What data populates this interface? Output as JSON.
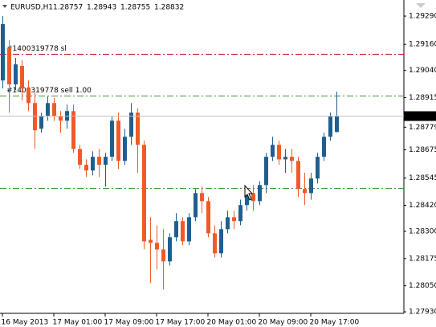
{
  "chart_data": {
    "type": "candlestick",
    "title": "EURUSD,H1",
    "categories": [
      "16 May 2013",
      null,
      null,
      null,
      null,
      null,
      null,
      null,
      "17 May 01:00",
      null,
      null,
      null,
      null,
      null,
      null,
      null,
      "17 May 09:00",
      null,
      null,
      null,
      null,
      null,
      null,
      null,
      "17 May 17:00",
      null,
      null,
      null,
      null,
      null,
      null,
      null,
      "20 May 01:00",
      null,
      null,
      null,
      null,
      null,
      null,
      null,
      "20 May 09:00",
      null,
      null,
      null,
      null,
      null,
      null,
      null,
      "20 May 17:00",
      null,
      null,
      null,
      null
    ],
    "open": [
      1.28994,
      1.29142,
      1.28976,
      1.29061,
      1.28957,
      1.2889,
      1.28772,
      1.28828,
      1.2889,
      1.28828,
      1.28809,
      1.28853,
      1.28679,
      1.28606,
      1.2858,
      1.28643,
      1.28606,
      1.28643,
      1.28809,
      1.28624,
      1.28735,
      1.28846,
      1.28698,
      1.28261,
      1.28247,
      1.28217,
      1.28162,
      1.28273,
      1.28347,
      1.28254,
      1.28365,
      1.28476,
      1.28439,
      1.28291,
      1.28199,
      1.2831,
      1.28365,
      1.28347,
      1.28421,
      1.28476,
      1.28439,
      1.28513,
      1.28643,
      1.28698,
      1.28631,
      1.28643,
      1.28624,
      1.28495,
      1.28476,
      1.28543,
      1.28643,
      1.28735,
      1.28757
    ],
    "high": [
      1.2929,
      1.29179,
      1.29098,
      1.29087,
      1.28994,
      1.28939,
      1.28846,
      1.2892,
      1.28913,
      1.28853,
      1.28883,
      1.28883,
      1.28698,
      1.28631,
      1.28668,
      1.28679,
      1.28661,
      1.28828,
      1.28846,
      1.28772,
      1.2889,
      1.28865,
      1.28717,
      1.28365,
      1.28328,
      1.2831,
      1.28291,
      1.28384,
      1.28365,
      1.28384,
      1.28495,
      1.28506,
      1.28458,
      1.28328,
      1.28347,
      1.28395,
      1.28395,
      1.28446,
      1.28495,
      1.28513,
      1.28531,
      1.28661,
      1.28735,
      1.28717,
      1.28679,
      1.28679,
      1.28643,
      1.28569,
      1.28569,
      1.28661,
      1.28754,
      1.28846,
      1.28943
    ],
    "low": [
      1.28957,
      1.28846,
      1.2895,
      1.28902,
      1.28853,
      1.28679,
      1.28754,
      1.28809,
      1.28809,
      1.28754,
      1.28772,
      1.28661,
      1.28587,
      1.2855,
      1.28557,
      1.2855,
      1.28506,
      1.28624,
      1.28587,
      1.28606,
      1.28698,
      1.28569,
      1.28217,
      1.28062,
      1.28125,
      1.28032,
      1.28143,
      1.28254,
      1.28236,
      1.28236,
      1.28347,
      1.28384,
      1.28273,
      1.2818,
      1.2818,
      1.28291,
      1.2831,
      1.28328,
      1.28395,
      1.28395,
      1.28421,
      1.28476,
      1.28624,
      1.28606,
      1.28569,
      1.28569,
      1.28458,
      1.28421,
      1.28446,
      1.2852,
      1.28624,
      1.28717,
      1.28755
    ],
    "close": [
      1.29253,
      1.28976,
      1.29068,
      1.28957,
      1.2889,
      1.28765,
      1.28828,
      1.2889,
      1.28828,
      1.28809,
      1.28853,
      1.28679,
      1.28606,
      1.2858,
      1.28643,
      1.28606,
      1.28643,
      1.28809,
      1.28624,
      1.28735,
      1.28846,
      1.28698,
      1.28254,
      1.28247,
      1.28217,
      1.28162,
      1.28273,
      1.28347,
      1.28254,
      1.28365,
      1.28476,
      1.28439,
      1.28291,
      1.28199,
      1.2831,
      1.28365,
      1.28347,
      1.28421,
      1.28476,
      1.28439,
      1.28513,
      1.28643,
      1.28698,
      1.28631,
      1.28643,
      1.28624,
      1.28495,
      1.28476,
      1.28543,
      1.28643,
      1.28735,
      1.28828,
      1.28832
    ],
    "up_color": "#1f5f8f",
    "down_color": "#f05a28",
    "ylim": [
      1.27923,
      1.29364
    ],
    "yticks": [
      {
        "value": 1.2929,
        "label": "1.29290"
      },
      {
        "value": 1.2916,
        "label": "1.29160"
      },
      {
        "value": 1.2904,
        "label": "1.29040"
      },
      1.28915,
      1.28779,
      1.28675,
      1.28545,
      {
        "value": 1.2842,
        "label": "1.28420"
      },
      {
        "value": 1.283,
        "label": "1.28300"
      },
      1.28175,
      {
        "value": 1.2805,
        "label": "1.28050"
      },
      {
        "value": 1.2793,
        "label": "1.27930"
      }
    ],
    "levels": [
      {
        "label": "#1400319778 sl",
        "value": 1.29116,
        "color": "#c00000"
      },
      {
        "label": "#1400319778 sell 1.00",
        "value": 1.28924,
        "color": "#3a9a3a"
      },
      {
        "value": 1.28498,
        "color": "#3a9a3a"
      }
    ],
    "grid": false
  }
}
